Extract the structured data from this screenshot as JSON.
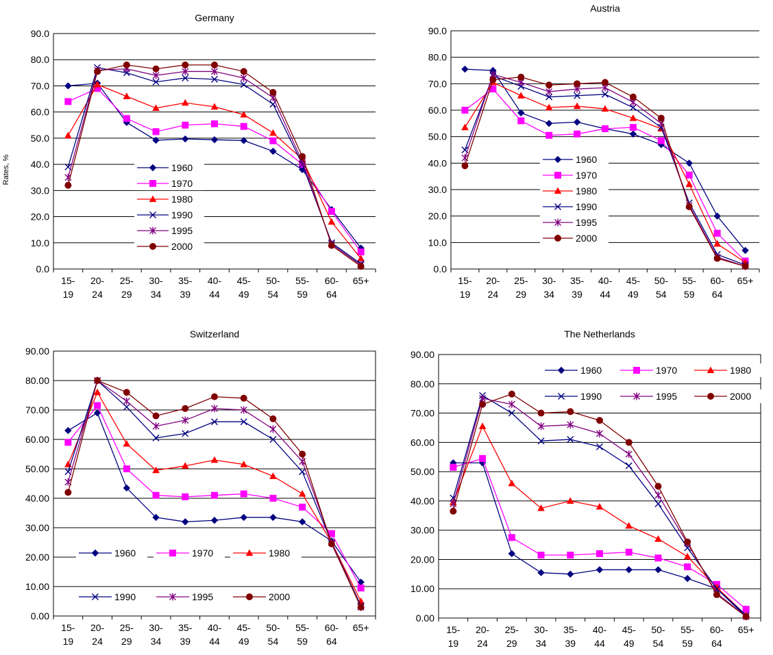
{
  "styles": {
    "1960": {
      "color": "#000080",
      "marker": "diamond"
    },
    "1970": {
      "color": "#ff00ff",
      "marker": "square"
    },
    "1980": {
      "color": "#ff0000",
      "marker": "triangle"
    },
    "1990": {
      "color": "#000080",
      "marker": "x"
    },
    "1995": {
      "color": "#800080",
      "marker": "star"
    },
    "2000": {
      "color": "#800000",
      "marker": "circle"
    }
  },
  "chart_data": [
    {
      "type": "line",
      "title": "Germany",
      "ylabel": "Rates, %",
      "ylim": [
        0,
        90
      ],
      "yticks": [
        "0.0",
        "10.0",
        "20.0",
        "30.0",
        "40.0",
        "50.0",
        "60.0",
        "70.0",
        "80.0",
        "90.0"
      ],
      "categories": [
        "15-\n19",
        "20-\n24",
        "25-\n29",
        "30-\n34",
        "35-\n39",
        "40-\n44",
        "45-\n49",
        "50-\n54",
        "55-\n59",
        "60-\n64",
        "65+"
      ],
      "legend": "lower-left",
      "series": [
        {
          "name": "1960",
          "values": [
            70.0,
            71.0,
            56.0,
            49.2,
            49.7,
            49.4,
            49.1,
            45.0,
            38.0,
            22.7,
            8.0
          ]
        },
        {
          "name": "1970",
          "values": [
            64.0,
            69.0,
            57.5,
            52.5,
            55.0,
            55.5,
            54.5,
            49.0,
            40.0,
            22.0,
            6.5
          ]
        },
        {
          "name": "1980",
          "values": [
            51.0,
            70.5,
            66.0,
            61.5,
            63.5,
            62.0,
            59.0,
            52.0,
            42.0,
            18.0,
            4.0
          ]
        },
        {
          "name": "1990",
          "values": [
            39.0,
            77.0,
            75.0,
            71.5,
            73.0,
            72.5,
            70.5,
            63.0,
            40.0,
            10.0,
            2.0
          ]
        },
        {
          "name": "1995",
          "values": [
            35.0,
            76.0,
            76.5,
            74.0,
            75.5,
            75.5,
            73.0,
            65.5,
            41.0,
            9.5,
            1.5
          ]
        },
        {
          "name": "2000",
          "values": [
            32.0,
            75.5,
            78.0,
            76.5,
            78.0,
            78.0,
            75.5,
            67.5,
            43.0,
            9.0,
            1.0
          ]
        }
      ]
    },
    {
      "type": "line",
      "title": "Austria",
      "ylim": [
        0,
        90
      ],
      "yticks": [
        "0.0",
        "10.0",
        "20.0",
        "30.0",
        "40.0",
        "50.0",
        "60.0",
        "70.0",
        "80.0",
        "90.0"
      ],
      "categories": [
        "15-\n19",
        "20-\n24",
        "25-\n29",
        "30-\n34",
        "35-\n39",
        "40-\n44",
        "45-\n49",
        "50-\n54",
        "55-\n59",
        "60-\n64",
        "65+"
      ],
      "legend": "lower-left",
      "series": [
        {
          "name": "1960",
          "values": [
            75.5,
            75.0,
            59.0,
            55.0,
            55.5,
            53.0,
            51.0,
            47.0,
            40.0,
            20.0,
            7.0
          ]
        },
        {
          "name": "1970",
          "values": [
            60.0,
            68.0,
            56.0,
            50.5,
            51.0,
            53.0,
            53.5,
            48.5,
            35.5,
            13.5,
            3.0
          ]
        },
        {
          "name": "1980",
          "values": [
            53.5,
            70.5,
            65.5,
            61.0,
            61.5,
            60.5,
            57.0,
            53.0,
            32.0,
            9.5,
            2.5
          ]
        },
        {
          "name": "1990",
          "values": [
            45.0,
            73.0,
            69.0,
            65.0,
            65.5,
            66.0,
            61.0,
            53.5,
            25.0,
            5.5,
            1.5
          ]
        },
        {
          "name": "1995",
          "values": [
            42.0,
            73.5,
            70.5,
            67.0,
            68.0,
            68.5,
            63.0,
            55.0,
            24.0,
            4.5,
            1.0
          ]
        },
        {
          "name": "2000",
          "values": [
            39.0,
            71.5,
            72.5,
            69.5,
            70.0,
            70.5,
            65.0,
            57.0,
            23.5,
            4.0,
            1.0
          ]
        }
      ]
    },
    {
      "type": "line",
      "title": "Switzerland",
      "ylim": [
        0,
        90
      ],
      "yticks": [
        "0.00",
        "10.00",
        "20.00",
        "30.00",
        "40.00",
        "50.00",
        "60.00",
        "70.00",
        "80.00",
        "90.00"
      ],
      "categories": [
        "15-\n19",
        "20-\n24",
        "25-\n29",
        "30-\n34",
        "35-\n39",
        "40-\n44",
        "45-\n49",
        "50-\n54",
        "55-\n59",
        "60-\n64",
        "65+"
      ],
      "legend": "lower-left",
      "series": [
        {
          "name": "1960",
          "values": [
            63.0,
            69.0,
            43.5,
            33.5,
            32.0,
            32.5,
            33.5,
            33.5,
            32.0,
            25.5,
            11.5
          ]
        },
        {
          "name": "1970",
          "values": [
            59.0,
            71.5,
            50.0,
            41.0,
            40.5,
            41.0,
            41.5,
            40.0,
            37.0,
            28.0,
            9.5
          ]
        },
        {
          "name": "1980",
          "values": [
            51.5,
            76.0,
            58.5,
            49.5,
            51.0,
            53.0,
            51.5,
            47.5,
            41.5,
            25.0,
            5.0
          ]
        },
        {
          "name": "1990",
          "values": [
            49.0,
            80.0,
            71.0,
            60.5,
            62.0,
            66.0,
            66.0,
            60.0,
            49.0,
            25.0,
            3.5
          ]
        },
        {
          "name": "1995",
          "values": [
            45.5,
            80.0,
            73.0,
            64.5,
            66.5,
            70.5,
            70.0,
            63.5,
            52.5,
            25.0,
            3.0
          ]
        },
        {
          "name": "2000",
          "values": [
            42.0,
            80.0,
            76.0,
            68.0,
            70.5,
            74.5,
            74.0,
            67.0,
            55.0,
            24.5,
            3.0
          ]
        }
      ]
    },
    {
      "type": "line",
      "title": "The Netherlands",
      "ylim": [
        0,
        90
      ],
      "yticks": [
        "0.00",
        "10.00",
        "20.00",
        "30.00",
        "40.00",
        "50.00",
        "60.00",
        "70.00",
        "80.00",
        "90.00"
      ],
      "categories": [
        "15-\n19",
        "20-\n24",
        "25-\n29",
        "30-\n34",
        "35-\n39",
        "40-\n44",
        "45-\n49",
        "50-\n54",
        "55-\n59",
        "60-\n64",
        "65+"
      ],
      "legend": "top-right",
      "series": [
        {
          "name": "1960",
          "values": [
            53.0,
            53.0,
            22.0,
            15.5,
            15.0,
            16.5,
            16.5,
            16.5,
            13.5,
            10.0,
            0.5
          ]
        },
        {
          "name": "1970",
          "values": [
            51.5,
            54.5,
            27.5,
            21.5,
            21.5,
            22.0,
            22.5,
            20.5,
            17.5,
            11.5,
            3.0
          ]
        },
        {
          "name": "1980",
          "values": [
            39.5,
            65.5,
            46.0,
            37.5,
            40.0,
            38.0,
            31.5,
            27.0,
            21.0,
            10.5,
            1.0
          ]
        },
        {
          "name": "1990",
          "values": [
            41.0,
            76.0,
            70.0,
            60.5,
            61.0,
            58.5,
            52.0,
            39.0,
            24.0,
            10.0,
            1.0
          ]
        },
        {
          "name": "1995",
          "values": [
            39.0,
            75.0,
            73.0,
            65.5,
            66.0,
            63.0,
            56.0,
            42.0,
            25.5,
            8.5,
            0.5
          ]
        },
        {
          "name": "2000",
          "values": [
            36.5,
            73.0,
            76.5,
            70.0,
            70.5,
            67.5,
            60.0,
            45.0,
            26.0,
            8.0,
            0.5
          ]
        }
      ]
    }
  ]
}
